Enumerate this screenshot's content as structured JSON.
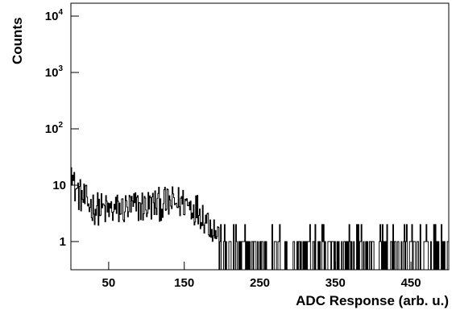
{
  "chart_data": {
    "type": "histogram",
    "title": "",
    "xlabel": "ADC Response (arb. u.)",
    "ylabel": "Counts",
    "xlim": [
      0,
      500
    ],
    "ylim": [
      0.3,
      15000
    ],
    "yscale": "log",
    "x_tick_labels": [
      50,
      150,
      250,
      350,
      450
    ],
    "y_tick_labels": [
      {
        "value": 1,
        "base": "1",
        "exp": ""
      },
      {
        "value": 10,
        "base": "10",
        "exp": ""
      },
      {
        "value": 100,
        "base": "10",
        "exp": "2"
      },
      {
        "value": 1000,
        "base": "10",
        "exp": "3"
      },
      {
        "value": 10000,
        "base": "10",
        "exp": "4"
      }
    ],
    "bin_width": 1,
    "series": [
      {
        "description_points": [
          [
            0,
            40
          ],
          [
            1,
            20
          ],
          [
            3,
            10
          ],
          [
            10,
            7
          ],
          [
            20,
            5
          ],
          [
            30,
            4
          ],
          [
            50,
            3.5
          ],
          [
            80,
            4
          ],
          [
            110,
            4.5
          ],
          [
            150,
            5
          ],
          [
            170,
            3.5
          ],
          [
            185,
            2
          ],
          [
            200,
            1
          ],
          [
            250,
            0.6
          ],
          [
            350,
            0.5
          ],
          [
            500,
            0.45
          ]
        ],
        "color": "#000000"
      }
    ],
    "grid": false,
    "legend": "none"
  }
}
